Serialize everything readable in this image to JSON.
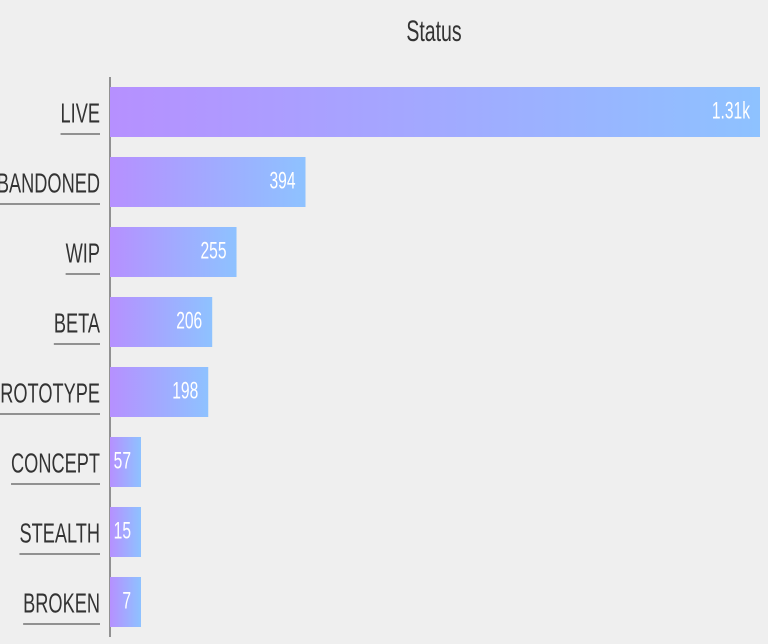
{
  "chart_data": {
    "type": "bar",
    "orientation": "horizontal",
    "title": "Status",
    "categories": [
      "LIVE",
      "ABANDONED",
      "WIP",
      "BETA",
      "PROTOTYPE",
      "CONCEPT",
      "STEALTH",
      "BROKEN"
    ],
    "values": [
      1310,
      394,
      255,
      206,
      198,
      57,
      15,
      7
    ],
    "value_labels": [
      "1.31k",
      "394",
      "255",
      "206",
      "198",
      "57",
      "15",
      "7"
    ],
    "colors": [
      "#b690ff",
      "#8ec2ff"
    ]
  }
}
